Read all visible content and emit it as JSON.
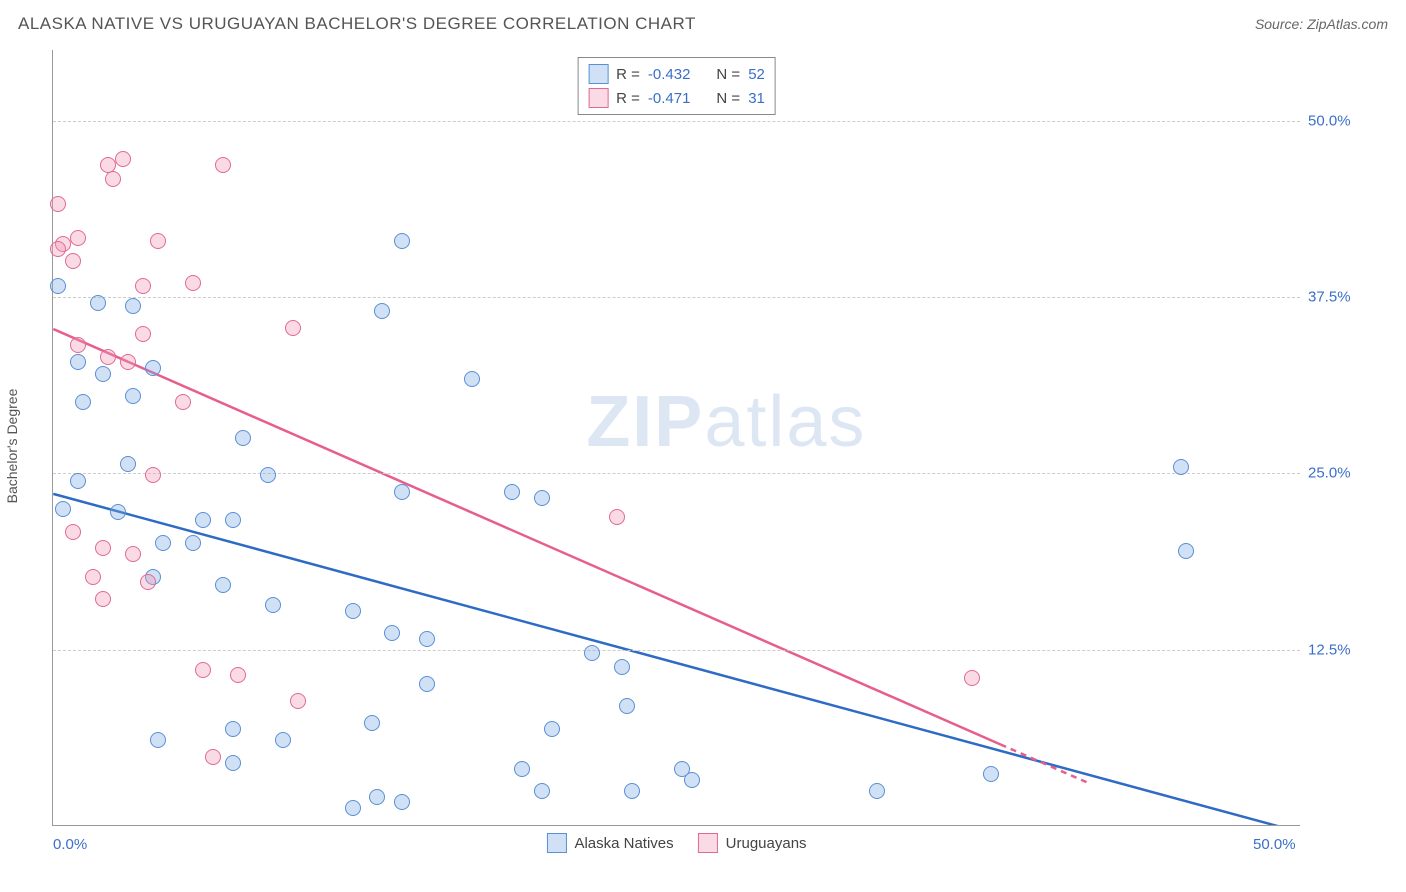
{
  "header": {
    "title": "ALASKA NATIVE VS URUGUAYAN BACHELOR'S DEGREE CORRELATION CHART",
    "source_prefix": "Source: ",
    "source_name": "ZipAtlas.com"
  },
  "watermark": {
    "zip": "ZIP",
    "atlas": "atlas"
  },
  "chart": {
    "type": "scatter",
    "ylabel": "Bachelor's Degree",
    "xlim": [
      0,
      50
    ],
    "ylim": [
      0,
      55
    ],
    "yticks": [
      {
        "value": 12.5,
        "label": "12.5%"
      },
      {
        "value": 25.0,
        "label": "25.0%"
      },
      {
        "value": 37.5,
        "label": "37.5%"
      },
      {
        "value": 50.0,
        "label": "50.0%"
      }
    ],
    "xticks": [
      {
        "value": 0,
        "label": "0.0%"
      },
      {
        "value": 50,
        "label": "50.0%"
      }
    ],
    "grid_color": "#cccccc",
    "axis_color": "#999999",
    "background_color": "#ffffff",
    "point_radius": 8,
    "series": [
      {
        "name": "Alaska Natives",
        "fill": "rgba(120,170,230,0.35)",
        "stroke": "#5a8fd4",
        "trend": {
          "color": "#2d6bc4",
          "width": 2.5,
          "x1": 0,
          "y1": 23.5,
          "x2": 50,
          "y2": -0.5
        },
        "stats": {
          "R": "-0.432",
          "N": "52"
        },
        "points": [
          {
            "x": 0.2,
            "y": 38.2
          },
          {
            "x": 1.8,
            "y": 37.0
          },
          {
            "x": 1.0,
            "y": 32.8
          },
          {
            "x": 2.0,
            "y": 32.0
          },
          {
            "x": 3.2,
            "y": 36.8
          },
          {
            "x": 4.0,
            "y": 32.4
          },
          {
            "x": 3.2,
            "y": 30.4
          },
          {
            "x": 1.2,
            "y": 30.0
          },
          {
            "x": 14.0,
            "y": 41.4
          },
          {
            "x": 13.2,
            "y": 36.4
          },
          {
            "x": 16.8,
            "y": 31.6
          },
          {
            "x": 14.0,
            "y": 23.6
          },
          {
            "x": 3.0,
            "y": 25.6
          },
          {
            "x": 1.0,
            "y": 24.4
          },
          {
            "x": 0.4,
            "y": 22.4
          },
          {
            "x": 2.6,
            "y": 22.2
          },
          {
            "x": 6.0,
            "y": 21.6
          },
          {
            "x": 4.4,
            "y": 20.0
          },
          {
            "x": 5.6,
            "y": 20.0
          },
          {
            "x": 7.2,
            "y": 21.6
          },
          {
            "x": 8.6,
            "y": 24.8
          },
          {
            "x": 7.6,
            "y": 27.4
          },
          {
            "x": 4.0,
            "y": 17.6
          },
          {
            "x": 6.8,
            "y": 17.0
          },
          {
            "x": 8.8,
            "y": 15.6
          },
          {
            "x": 12.0,
            "y": 15.2
          },
          {
            "x": 13.6,
            "y": 13.6
          },
          {
            "x": 15.0,
            "y": 13.2
          },
          {
            "x": 18.4,
            "y": 23.6
          },
          {
            "x": 19.6,
            "y": 23.2
          },
          {
            "x": 21.6,
            "y": 12.2
          },
          {
            "x": 22.8,
            "y": 11.2
          },
          {
            "x": 15.0,
            "y": 10.0
          },
          {
            "x": 12.8,
            "y": 7.2
          },
          {
            "x": 9.2,
            "y": 6.0
          },
          {
            "x": 7.2,
            "y": 6.8
          },
          {
            "x": 4.2,
            "y": 6.0
          },
          {
            "x": 7.2,
            "y": 4.4
          },
          {
            "x": 13.0,
            "y": 2.0
          },
          {
            "x": 14.0,
            "y": 1.6
          },
          {
            "x": 12.0,
            "y": 1.2
          },
          {
            "x": 18.8,
            "y": 4.0
          },
          {
            "x": 19.6,
            "y": 2.4
          },
          {
            "x": 23.2,
            "y": 2.4
          },
          {
            "x": 23.0,
            "y": 8.4
          },
          {
            "x": 25.2,
            "y": 4.0
          },
          {
            "x": 25.6,
            "y": 3.2
          },
          {
            "x": 33.0,
            "y": 2.4
          },
          {
            "x": 37.6,
            "y": 3.6
          },
          {
            "x": 45.2,
            "y": 25.4
          },
          {
            "x": 45.4,
            "y": 19.4
          },
          {
            "x": 20.0,
            "y": 6.8
          }
        ]
      },
      {
        "name": "Uruguayans",
        "fill": "rgba(240,150,180,0.35)",
        "stroke": "#e06a94",
        "trend": {
          "color": "#e75e8c",
          "width": 2.5,
          "x1": 0,
          "y1": 35.2,
          "x2": 41.5,
          "y2": 3.0,
          "dash_after_x": 38
        },
        "stats": {
          "R": "-0.471",
          "N": "31"
        },
        "points": [
          {
            "x": 0.4,
            "y": 41.2
          },
          {
            "x": 0.2,
            "y": 40.8
          },
          {
            "x": 1.0,
            "y": 41.6
          },
          {
            "x": 0.8,
            "y": 40.0
          },
          {
            "x": 2.2,
            "y": 46.8
          },
          {
            "x": 2.8,
            "y": 47.2
          },
          {
            "x": 2.4,
            "y": 45.8
          },
          {
            "x": 6.8,
            "y": 46.8
          },
          {
            "x": 4.2,
            "y": 41.4
          },
          {
            "x": 3.6,
            "y": 38.2
          },
          {
            "x": 1.0,
            "y": 34.0
          },
          {
            "x": 2.2,
            "y": 33.2
          },
          {
            "x": 3.6,
            "y": 34.8
          },
          {
            "x": 3.0,
            "y": 32.8
          },
          {
            "x": 5.2,
            "y": 30.0
          },
          {
            "x": 5.6,
            "y": 38.4
          },
          {
            "x": 9.6,
            "y": 35.2
          },
          {
            "x": 4.0,
            "y": 24.8
          },
          {
            "x": 0.8,
            "y": 20.8
          },
          {
            "x": 2.0,
            "y": 19.6
          },
          {
            "x": 3.2,
            "y": 19.2
          },
          {
            "x": 2.0,
            "y": 16.0
          },
          {
            "x": 3.8,
            "y": 17.2
          },
          {
            "x": 1.6,
            "y": 17.6
          },
          {
            "x": 7.4,
            "y": 10.6
          },
          {
            "x": 6.0,
            "y": 11.0
          },
          {
            "x": 9.8,
            "y": 8.8
          },
          {
            "x": 6.4,
            "y": 4.8
          },
          {
            "x": 22.6,
            "y": 21.8
          },
          {
            "x": 36.8,
            "y": 10.4
          },
          {
            "x": 0.2,
            "y": 44.0
          }
        ]
      }
    ],
    "legend": {
      "r_label": "R = ",
      "n_label": "N = "
    }
  }
}
